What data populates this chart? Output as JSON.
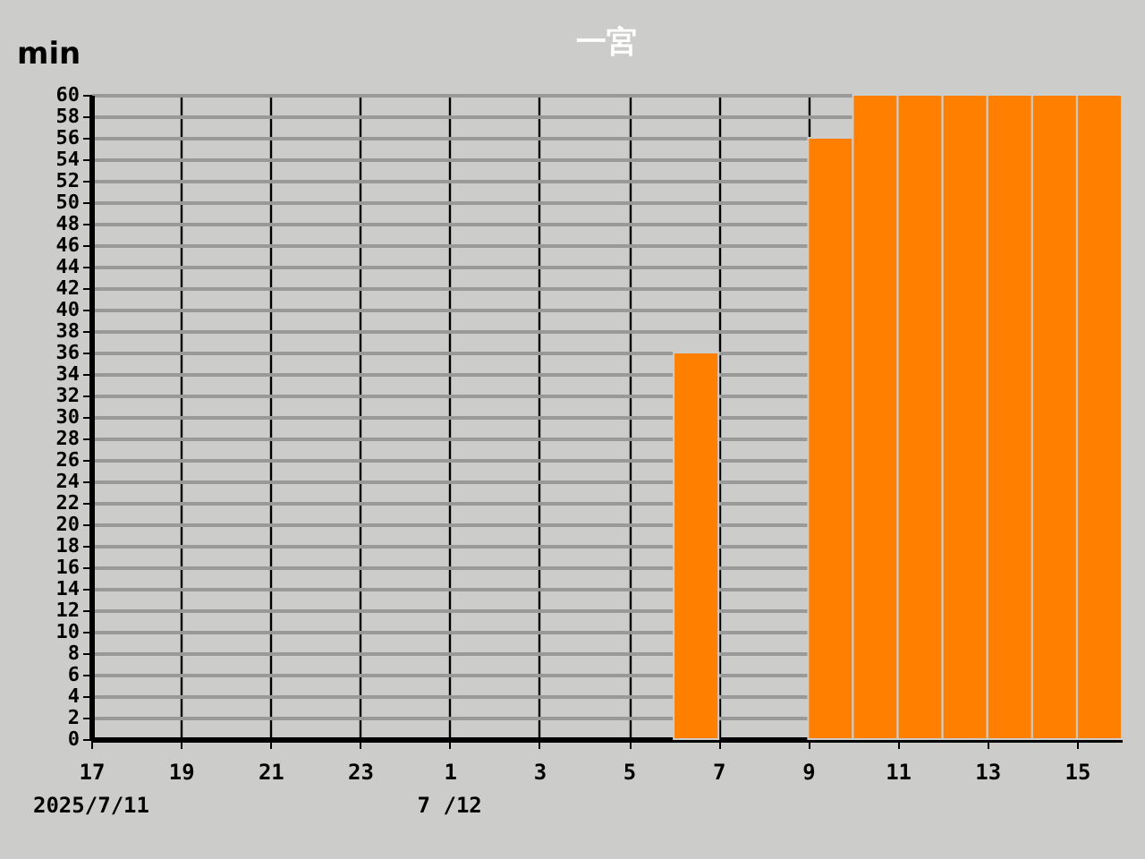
{
  "chart_data": {
    "type": "bar",
    "title": "一宮",
    "ylabel": "min",
    "x": [
      "2025-07-11T17:30",
      "2025-07-11T18:30",
      "2025-07-11T19:30",
      "2025-07-11T20:30",
      "2025-07-11T21:30",
      "2025-07-11T22:30",
      "2025-07-11T23:30",
      "2025-07-12T00:30",
      "2025-07-12T01:30",
      "2025-07-12T02:30",
      "2025-07-12T03:30",
      "2025-07-12T04:30",
      "2025-07-12T05:30",
      "2025-07-12T06:30",
      "2025-07-12T07:30",
      "2025-07-12T08:30",
      "2025-07-12T09:30",
      "2025-07-12T10:30",
      "2025-07-12T11:30",
      "2025-07-12T12:30",
      "2025-07-12T13:30",
      "2025-07-12T14:30",
      "2025-07-12T15:30"
    ],
    "values": [
      0,
      0,
      0,
      0,
      0,
      0,
      0,
      0,
      0,
      0,
      0,
      0,
      0,
      36,
      0,
      0,
      56,
      60,
      60,
      60,
      60,
      60,
      60
    ],
    "color": "#ff8000",
    "xlim": [
      "2025-07-11T17:00",
      "2025-07-12T16:00"
    ],
    "xticks": [
      {
        "value": "2025-07-11T17:00",
        "label": "17"
      },
      {
        "value": "2025-07-11T19:00",
        "label": "19"
      },
      {
        "value": "2025-07-11T21:00",
        "label": "21"
      },
      {
        "value": "2025-07-11T23:00",
        "label": "23"
      },
      {
        "value": "2025-07-12T01:00",
        "label": "1"
      },
      {
        "value": "2025-07-12T03:00",
        "label": "3"
      },
      {
        "value": "2025-07-12T05:00",
        "label": "5"
      },
      {
        "value": "2025-07-12T07:00",
        "label": "7"
      },
      {
        "value": "2025-07-12T09:00",
        "label": "9"
      },
      {
        "value": "2025-07-12T11:00",
        "label": "11"
      },
      {
        "value": "2025-07-12T13:00",
        "label": "13"
      },
      {
        "value": "2025-07-12T15:00",
        "label": "15"
      }
    ],
    "ylim": [
      0,
      60
    ],
    "yticks": [
      0,
      2,
      4,
      6,
      8,
      10,
      12,
      14,
      16,
      18,
      20,
      22,
      24,
      26,
      28,
      30,
      32,
      34,
      36,
      38,
      40,
      42,
      44,
      46,
      48,
      50,
      52,
      54,
      56,
      58,
      60
    ],
    "grid": true,
    "annotations": [
      "2025/7/11",
      "7 /12"
    ]
  }
}
